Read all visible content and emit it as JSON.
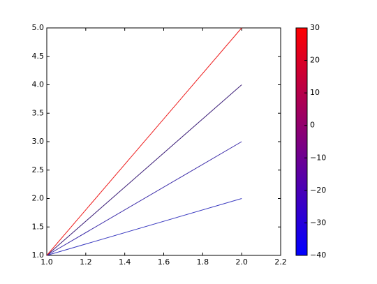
{
  "chart_data": {
    "type": "line",
    "x": [
      1,
      2
    ],
    "series": [
      {
        "color": "#3a3ac0",
        "values": [
          1,
          2
        ]
      },
      {
        "color": "#3a2aa8",
        "values": [
          1,
          3
        ]
      },
      {
        "color": "#3c1e78",
        "values": [
          1,
          4
        ]
      },
      {
        "color": "#ee1c1c",
        "values": [
          1,
          5
        ]
      }
    ],
    "xlim": [
      1.0,
      2.2
    ],
    "xticks": [
      {
        "value": 1.0,
        "label": "1.0"
      },
      1.2,
      1.4,
      1.6,
      1.8,
      {
        "value": 2.0,
        "label": "2.0"
      },
      2.2
    ],
    "ylim": [
      1.0,
      5.0
    ],
    "yticks": [
      {
        "value": 1.0,
        "label": "1.0"
      },
      1.5,
      {
        "value": 2.0,
        "label": "2.0"
      },
      2.5,
      {
        "value": 3.0,
        "label": "3.0"
      },
      3.5,
      {
        "value": 4.0,
        "label": "4.0"
      },
      4.5,
      {
        "value": 5.0,
        "label": "5.0"
      }
    ],
    "colorbar": {
      "clim": [
        -40,
        30
      ],
      "colors": [
        "#0000ff",
        "#ff0000"
      ],
      "ticks": [
        {
          "value": -40,
          "label": "−40"
        },
        {
          "value": -30,
          "label": "−30"
        },
        {
          "value": -20,
          "label": "−20"
        },
        {
          "value": -10,
          "label": "−10"
        },
        0,
        10,
        20,
        30
      ]
    }
  }
}
